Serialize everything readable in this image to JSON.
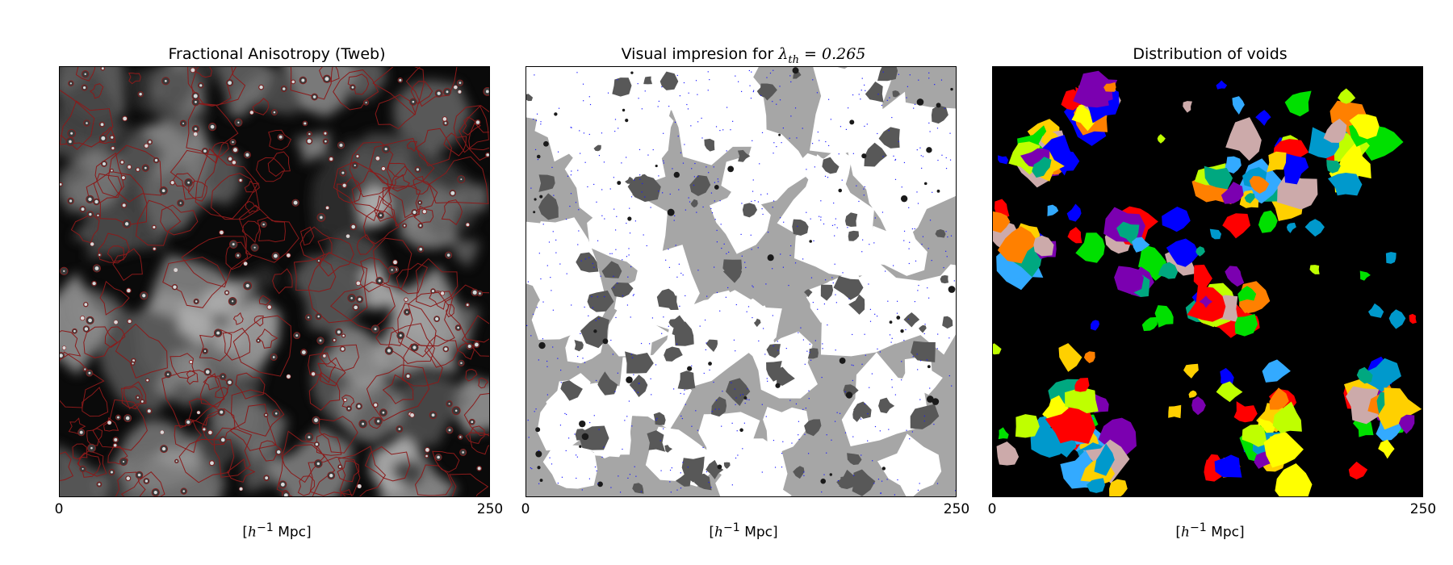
{
  "panels": [
    {
      "title": "Fractional Anisotropy (Tweb)",
      "x_tick_min": "0",
      "x_tick_max": "250",
      "xlabel_pre": "[",
      "xlabel_math": "h",
      "xlabel_sup": "−1",
      "xlabel_post": " Mpc]"
    },
    {
      "title_prefix": "Visual impresion for ",
      "title_math": "λ",
      "title_sub": "th",
      "title_eq": " = 0.265",
      "x_tick_min": "0",
      "x_tick_max": "250",
      "xlabel_pre": "[",
      "xlabel_math": "h",
      "xlabel_sup": "−1",
      "xlabel_post": " Mpc]"
    },
    {
      "title": "Distribution of voids",
      "x_tick_min": "0",
      "x_tick_max": "250",
      "xlabel_pre": "[",
      "xlabel_math": "h",
      "xlabel_sup": "−1",
      "xlabel_post": " Mpc]"
    }
  ],
  "colors": {
    "fa_background": "#0a0a0a",
    "fa_bright": "#d8d8d8",
    "fa_contour": "#8b1a1a",
    "impression_background": "#ffffff",
    "impression_light_gray": "#a6a6a6",
    "impression_dark_gray": "#585858",
    "impression_points": "#1a1aff",
    "voids_background": "#000000",
    "void_palette": [
      "#ff0000",
      "#00e000",
      "#0000ff",
      "#ffd000",
      "#ff8000",
      "#0099cc",
      "#7b00b0",
      "#00a880",
      "#bfff00",
      "#ccaaaa",
      "#ffff00",
      "#33aaff"
    ]
  }
}
